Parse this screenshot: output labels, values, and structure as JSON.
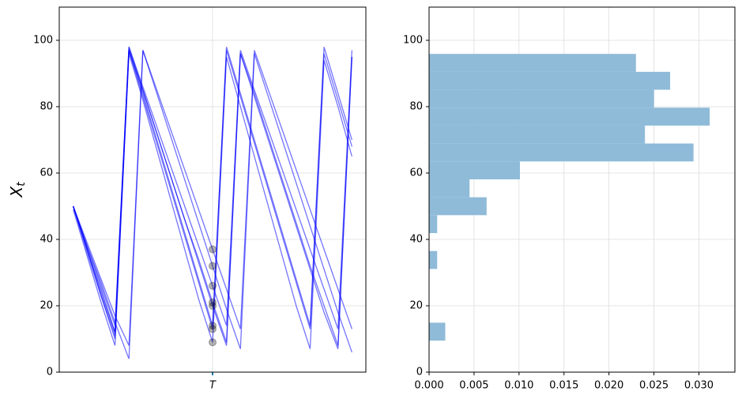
{
  "chart_data": [
    {
      "type": "line",
      "ylabel": "X",
      "ylabel_sub": "t",
      "x": [
        0,
        5,
        10,
        15,
        20,
        25,
        30,
        35,
        40,
        45,
        50,
        55,
        60,
        65,
        70,
        75,
        80,
        85,
        90,
        95,
        100
      ],
      "xlim": [
        -5,
        105
      ],
      "xticks": [
        {
          "value": 50,
          "label": "T"
        }
      ],
      "ylim": [
        0,
        110
      ],
      "yticks": [
        0,
        20,
        40,
        60,
        80,
        100
      ],
      "grid": true,
      "marker_color": "#000000",
      "series": [
        {
          "color": "#0000ff",
          "values": [
            50,
            37,
            23,
            10,
            97,
            84,
            70,
            56,
            42,
            28,
            14,
            97,
            83,
            69,
            55,
            41,
            27,
            13,
            96,
            82,
            68
          ]
        },
        {
          "color": "#0000ff",
          "values": [
            50,
            38,
            26,
            14,
            98,
            86,
            74,
            62,
            50,
            38,
            26,
            14,
            97,
            85,
            73,
            61,
            49,
            37,
            25,
            13,
            97
          ]
        },
        {
          "color": "#0000ff",
          "values": [
            49,
            35,
            21,
            8,
            96,
            82,
            67,
            52,
            37,
            22,
            9,
            95,
            80,
            65,
            50,
            35,
            20,
            7,
            94,
            80,
            65
          ]
        },
        {
          "color": "#0000ff",
          "values": [
            50,
            39,
            28,
            17,
            8,
            97,
            85,
            73,
            61,
            49,
            37,
            25,
            13,
            97,
            85,
            73,
            61,
            49,
            37,
            25,
            13
          ]
        },
        {
          "color": "#0000ff",
          "values": [
            50,
            37,
            24,
            12,
            98,
            85,
            72,
            59,
            46,
            33,
            20,
            8,
            96,
            83,
            70,
            57,
            44,
            31,
            18,
            7,
            95
          ]
        },
        {
          "color": "#0000ff",
          "values": [
            50,
            36,
            23,
            11,
            97,
            83,
            69,
            55,
            41,
            27,
            13,
            98,
            84,
            70,
            56,
            42,
            28,
            14,
            98,
            84,
            70
          ]
        },
        {
          "color": "#0000ff",
          "values": [
            50,
            38,
            27,
            15,
            4,
            97,
            84,
            71,
            58,
            45,
            32,
            19,
            7,
            96,
            83,
            70,
            57,
            44,
            31,
            18,
            6
          ]
        },
        {
          "color": "#0000ff",
          "values": [
            50,
            37,
            25,
            12,
            97,
            85,
            72,
            59,
            46,
            34,
            21,
            9,
            96,
            84,
            71,
            58,
            45,
            32,
            20,
            8,
            95
          ]
        }
      ]
    },
    {
      "type": "histogram",
      "orientation": "horizontal",
      "color": "#8fbbd9",
      "bins": [
        9.5,
        14.9,
        20.3,
        25.7,
        31.1,
        36.5,
        41.9,
        47.3,
        52.7,
        58.1,
        63.5,
        68.9,
        74.3,
        79.7,
        85.1,
        90.5,
        95.9
      ],
      "values": [
        0.0018,
        0,
        0,
        0,
        0.0009,
        0,
        0.0009,
        0.0064,
        0.0045,
        0.0101,
        0.0294,
        0.024,
        0.0312,
        0.025,
        0.0268,
        0.023
      ],
      "xlim": [
        0,
        0.034
      ],
      "xticks": [
        {
          "value": 0,
          "label": "0.000"
        },
        {
          "value": 0.005,
          "label": "0.005"
        },
        {
          "value": 0.01,
          "label": "0.010"
        },
        {
          "value": 0.015,
          "label": "0.015"
        },
        {
          "value": 0.02,
          "label": "0.020"
        },
        {
          "value": 0.025,
          "label": "0.025"
        },
        {
          "value": 0.03,
          "label": "0.030"
        }
      ],
      "ylim": [
        0,
        110
      ],
      "yticks": [
        0,
        20,
        40,
        60,
        80,
        100
      ],
      "grid": true
    }
  ]
}
